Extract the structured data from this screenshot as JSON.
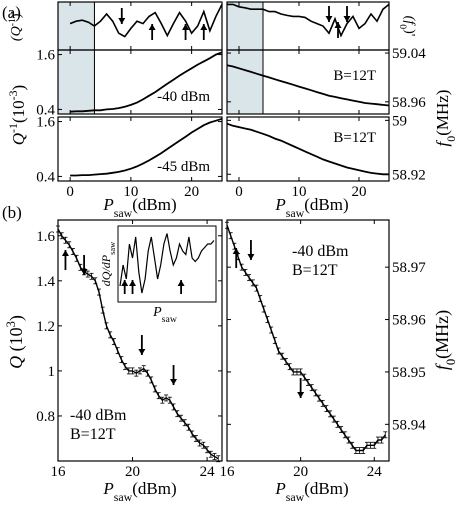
{
  "panel_labels": {
    "a": "(a)",
    "b": "(b)"
  },
  "chart_data": [
    {
      "id": "a-left",
      "type": "line",
      "x": [
        0,
        1,
        2,
        3,
        4,
        5,
        6,
        7,
        8,
        9,
        10,
        11,
        12,
        13,
        14,
        15,
        16,
        17,
        18,
        19,
        20,
        21,
        22,
        23,
        24,
        25
      ],
      "deriv_y": [
        0.55,
        0.6,
        0.62,
        0.58,
        0.5,
        0.6,
        0.75,
        0.6,
        0.35,
        0.28,
        0.45,
        0.6,
        0.55,
        0.7,
        0.78,
        0.55,
        0.3,
        0.55,
        0.78,
        0.6,
        0.35,
        0.5,
        0.8,
        0.4,
        0.7,
        0.95
      ],
      "rows": [
        {
          "label": "-40 dBm",
          "y": [
            0.35,
            0.36,
            0.36,
            0.37,
            0.38,
            0.38,
            0.4,
            0.41,
            0.43,
            0.46,
            0.5,
            0.55,
            0.62,
            0.7,
            0.78,
            0.87,
            0.96,
            1.05,
            1.14,
            1.22,
            1.3,
            1.38,
            1.45,
            1.52,
            1.6,
            1.65
          ]
        },
        {
          "label": "-45 dBm",
          "y": [
            0.42,
            0.42,
            0.43,
            0.43,
            0.44,
            0.45,
            0.46,
            0.48,
            0.5,
            0.53,
            0.57,
            0.62,
            0.68,
            0.75,
            0.83,
            0.91,
            1.0,
            1.09,
            1.18,
            1.27,
            1.36,
            1.44,
            1.52,
            1.58,
            1.62,
            1.66
          ]
        }
      ],
      "ylim": [
        0.3,
        1.7
      ],
      "yticks": [
        0.4,
        1.6
      ],
      "xlim": [
        -2,
        25
      ],
      "xticks": [
        0,
        10,
        20
      ],
      "xlabel": "P",
      "xlabel_sub": "saw",
      "xlabel_unit": "(dBm)",
      "deriv_label": "(Q",
      "deriv_label_sup": "-1",
      "deriv_label_tail": ")'",
      "ylabel": "Q",
      "ylabel_sup": "-1",
      "ylabel_tail": "(10",
      "ylabel_sup2": "-3",
      "ylabel_end": ")",
      "arrows": [
        {
          "x": 8.5,
          "dir": "down"
        },
        {
          "x": 13.5,
          "dir": "up"
        },
        {
          "x": 19,
          "dir": "up"
        },
        {
          "x": 22,
          "dir": "up"
        }
      ]
    },
    {
      "id": "a-right",
      "type": "line",
      "x": [
        -2,
        -1,
        0,
        1,
        2,
        3,
        4,
        5,
        6,
        7,
        8,
        9,
        10,
        11,
        12,
        13,
        14,
        15,
        16,
        17,
        18,
        19,
        20,
        21,
        22,
        23,
        24,
        25
      ],
      "deriv_y": [
        0.95,
        0.95,
        0.9,
        0.88,
        0.85,
        0.85,
        0.85,
        0.8,
        0.8,
        0.75,
        0.72,
        0.7,
        0.7,
        0.68,
        0.6,
        0.55,
        0.5,
        0.35,
        0.65,
        0.3,
        0.55,
        0.7,
        0.45,
        0.55,
        0.75,
        0.6,
        0.85,
        0.95
      ],
      "top": {
        "b_label": "B=12T",
        "y": [
          59.02,
          59.018,
          59.015,
          59.012,
          59.009,
          59.006,
          59.003,
          59.0,
          58.997,
          58.994,
          58.991,
          58.988,
          58.985,
          58.982,
          58.979,
          58.976,
          58.973,
          58.97,
          58.968,
          58.966,
          58.964,
          58.962,
          58.96,
          58.958,
          58.957,
          58.956,
          58.955,
          58.954
        ],
        "ylim": [
          58.94,
          59.045
        ],
        "yticks": [
          58.96,
          59.04
        ]
      },
      "bottom": {
        "b_label": "B=12T",
        "y": [
          58.995,
          58.992,
          58.99,
          58.988,
          58.986,
          58.983,
          58.98,
          58.977,
          58.973,
          58.97,
          58.966,
          58.962,
          58.958,
          58.954,
          58.95,
          58.946,
          58.942,
          58.939,
          58.936,
          58.933,
          58.93,
          58.928,
          58.926,
          58.924,
          58.922,
          58.921,
          58.92,
          58.92
        ],
        "ylim": [
          58.91,
          59.005
        ],
        "yticks": [
          58.92,
          59.0
        ]
      },
      "xlim": [
        -2,
        25
      ],
      "xticks": [
        0,
        10,
        20
      ],
      "xlabel": "P",
      "xlabel_sub": "saw",
      "xlabel_unit": "(dBm)",
      "deriv_label": "(f",
      "deriv_label_sub": "0",
      "deriv_label_tail": ")'",
      "ylabel": "f",
      "ylabel_sub": "0",
      "ylabel_unit": "(MHz)",
      "arrows": [
        {
          "x": 15,
          "dir": "down"
        },
        {
          "x": 18,
          "dir": "down"
        },
        {
          "x": 16.5,
          "dir": "up"
        }
      ]
    },
    {
      "id": "b-left",
      "type": "line",
      "x": [
        16.0,
        16.2,
        16.4,
        16.6,
        16.8,
        17.0,
        17.2,
        17.4,
        17.6,
        17.8,
        18.0,
        18.2,
        18.4,
        18.6,
        18.8,
        19.0,
        19.2,
        19.4,
        19.6,
        19.8,
        20.0,
        20.2,
        20.4,
        20.6,
        20.8,
        21.0,
        21.2,
        21.4,
        21.6,
        21.8,
        22.0,
        22.2,
        22.4,
        22.6,
        22.8,
        23.0,
        23.2,
        23.4,
        23.6,
        23.8,
        24.0,
        24.2,
        24.4,
        24.6
      ],
      "y": [
        1.63,
        1.6,
        1.58,
        1.56,
        1.53,
        1.5,
        1.46,
        1.44,
        1.43,
        1.42,
        1.4,
        1.35,
        1.27,
        1.2,
        1.16,
        1.13,
        1.09,
        1.05,
        1.02,
        1.0,
        1.0,
        0.99,
        1.0,
        1.01,
        0.99,
        0.96,
        0.92,
        0.89,
        0.87,
        0.88,
        0.87,
        0.84,
        0.81,
        0.79,
        0.77,
        0.75,
        0.72,
        0.7,
        0.68,
        0.67,
        0.65,
        0.63,
        0.62,
        0.61
      ],
      "ylim": [
        0.6,
        1.67
      ],
      "yticks": [
        0.8,
        1.0,
        1.2,
        1.4,
        1.6
      ],
      "xlim": [
        16,
        24.8
      ],
      "xticks": [
        16,
        20,
        24
      ],
      "xlabel": "P",
      "xlabel_sub": "saw",
      "xlabel_unit": "(dBm)",
      "ylabel": "Q",
      "ylabel_unit": "(10",
      "ylabel_sup": "3",
      "ylabel_end": ")",
      "text1": "-40 dBm",
      "text2": "B=12T",
      "arrows": [
        {
          "x": 16.4,
          "dir": "up"
        },
        {
          "x": 17.4,
          "dir": "down"
        },
        {
          "x": 20.5,
          "dir": "down"
        },
        {
          "x": 22.2,
          "dir": "down"
        }
      ],
      "inset": {
        "ylabel": "dQ/dP",
        "ylabel_sub": "saw",
        "xlabel": "P",
        "xlabel_sub": "saw",
        "x": [
          0,
          1,
          2,
          3,
          4,
          5,
          6,
          7,
          8,
          9,
          10,
          11,
          12,
          13,
          14,
          15,
          16,
          17,
          18,
          19,
          20,
          21,
          22,
          23,
          24,
          25,
          26,
          27,
          28,
          29,
          30
        ],
        "y": [
          0.2,
          0.5,
          0.3,
          0.8,
          0.6,
          0.9,
          0.4,
          0.1,
          0.3,
          0.7,
          0.9,
          0.6,
          0.3,
          0.5,
          0.8,
          0.95,
          0.7,
          0.5,
          0.6,
          0.8,
          0.7,
          0.65,
          0.9,
          0.6,
          0.55,
          0.6,
          0.7,
          0.75,
          0.8,
          0.8,
          0.85
        ],
        "arrows": [
          {
            "x": 1.5,
            "dir": "up"
          },
          {
            "x": 4,
            "dir": "up"
          },
          {
            "x": 19.5,
            "dir": "up"
          }
        ]
      }
    },
    {
      "id": "b-right",
      "type": "line",
      "x": [
        16.0,
        16.2,
        16.4,
        16.6,
        16.8,
        17.0,
        17.2,
        17.4,
        17.6,
        17.8,
        18.0,
        18.2,
        18.4,
        18.6,
        18.8,
        19.0,
        19.2,
        19.4,
        19.6,
        19.8,
        20.0,
        20.2,
        20.4,
        20.6,
        20.8,
        21.0,
        21.2,
        21.4,
        21.6,
        21.8,
        22.0,
        22.2,
        22.4,
        22.6,
        22.8,
        23.0,
        23.2,
        23.4,
        23.6,
        23.8,
        24.0,
        24.2,
        24.4,
        24.6
      ],
      "y": [
        58.978,
        58.976,
        58.974,
        58.972,
        58.97,
        58.969,
        58.968,
        58.967,
        58.966,
        58.964,
        58.962,
        58.96,
        58.958,
        58.956,
        58.954,
        58.953,
        58.952,
        58.951,
        58.95,
        58.95,
        58.95,
        58.949,
        58.948,
        58.947,
        58.946,
        58.945,
        58.944,
        58.943,
        58.942,
        58.941,
        58.94,
        58.939,
        58.938,
        58.937,
        58.936,
        58.935,
        58.935,
        58.935,
        58.936,
        58.936,
        58.936,
        58.937,
        58.937,
        58.938
      ],
      "ylim": [
        58.933,
        58.979
      ],
      "yticks": [
        58.94,
        58.95,
        58.96,
        58.97
      ],
      "xlim": [
        16,
        24.8
      ],
      "xticks": [
        16,
        20,
        24
      ],
      "xlabel": "P",
      "xlabel_sub": "saw",
      "xlabel_unit": "(dBm)",
      "ylabel": "f",
      "ylabel_sub": "0",
      "ylabel_unit": "(MHz)",
      "text1": "-40 dBm",
      "text2": "B=12T",
      "arrows": [
        {
          "x": 16.5,
          "dir": "up"
        },
        {
          "x": 17.3,
          "dir": "down"
        },
        {
          "x": 20.0,
          "dir": "down"
        }
      ]
    }
  ]
}
